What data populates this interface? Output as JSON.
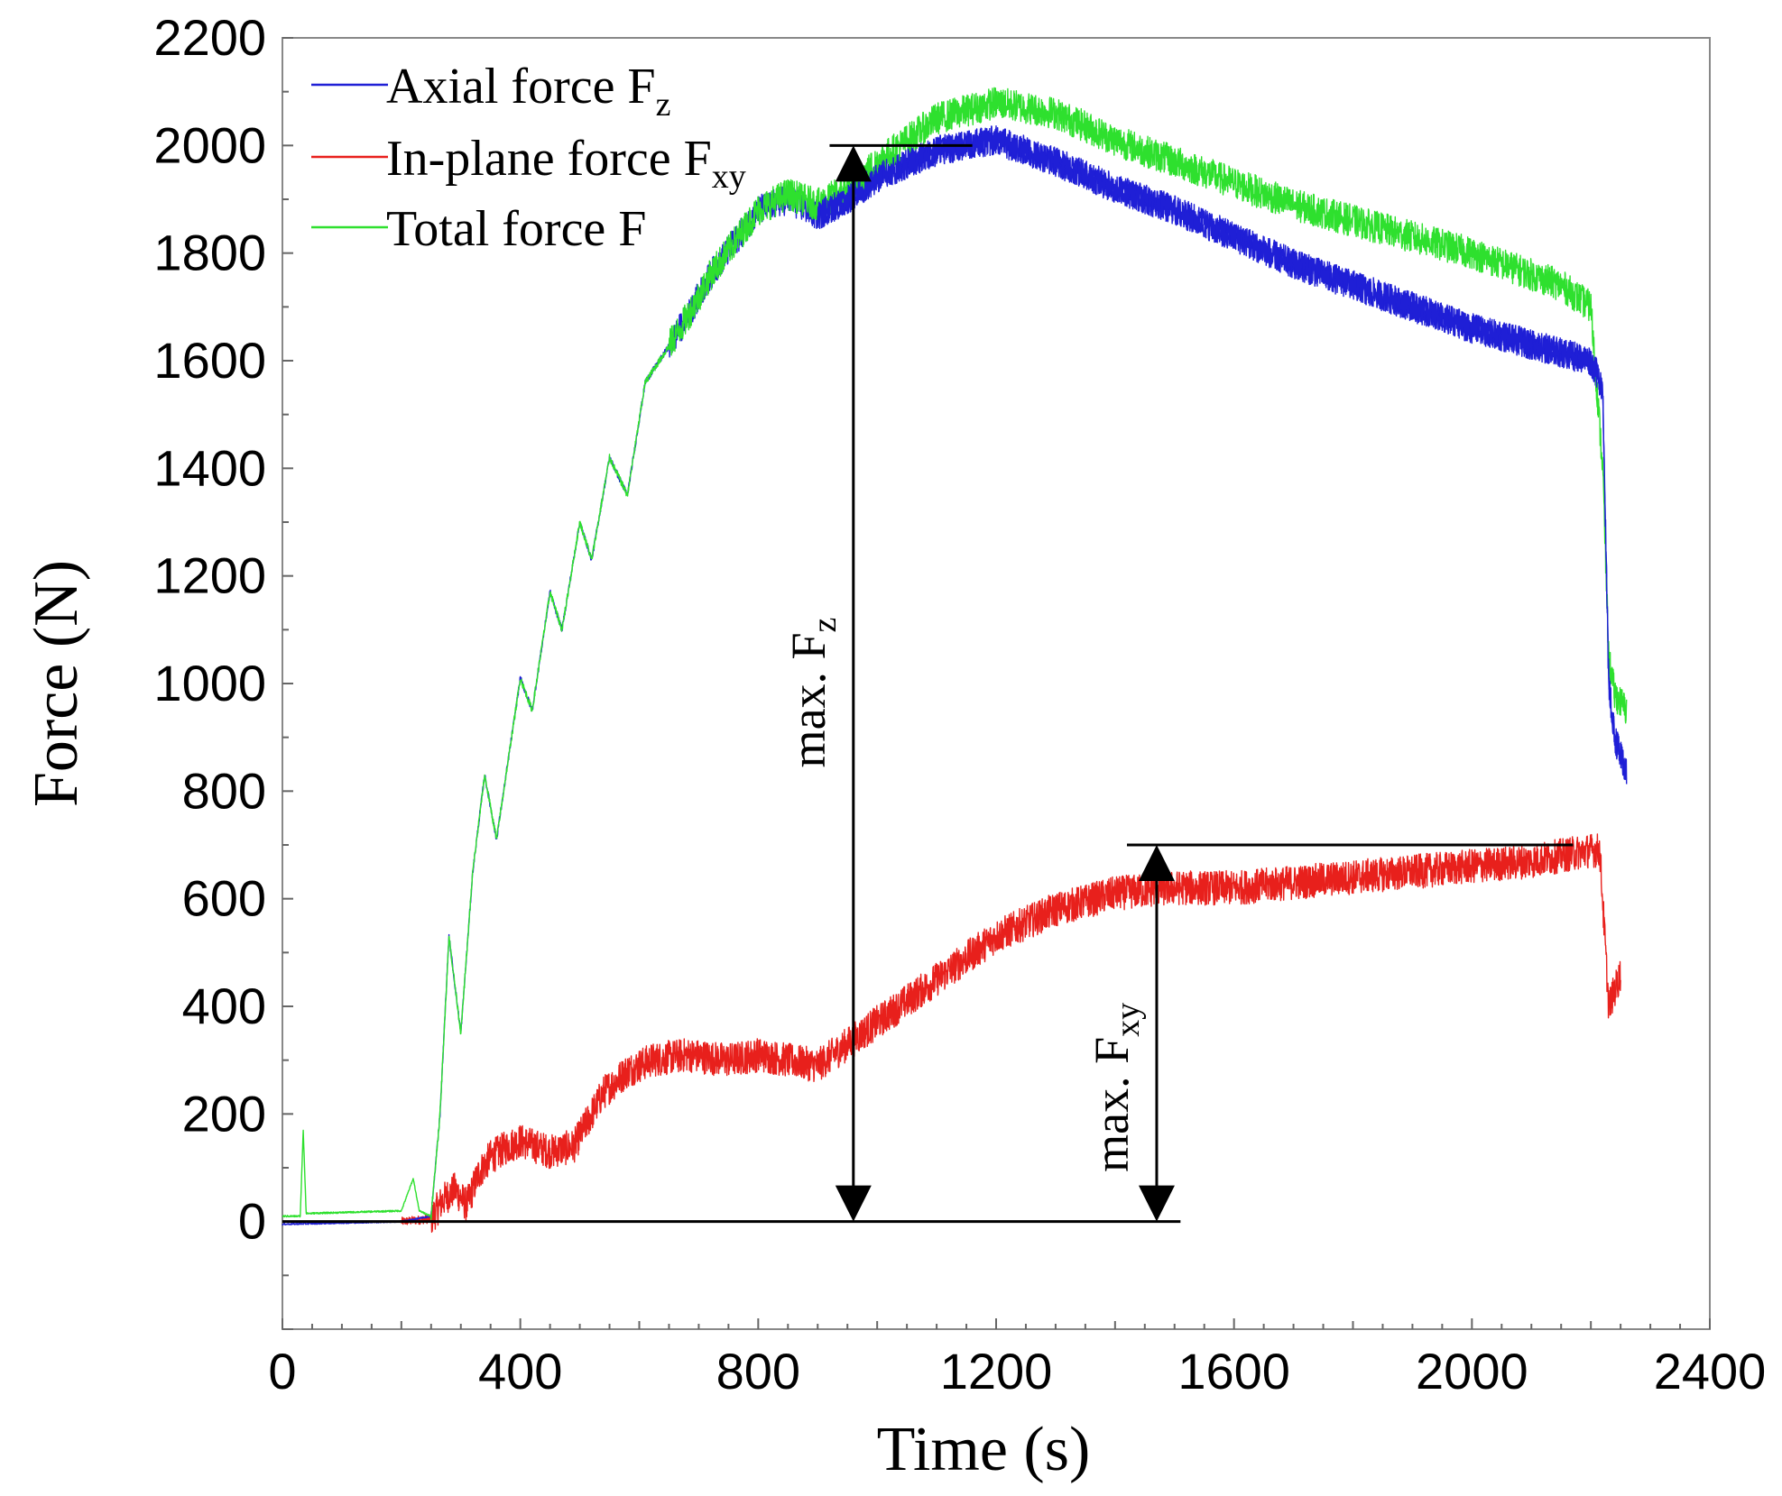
{
  "chart_data": {
    "type": "line",
    "title": "",
    "xlabel": "Time (s)",
    "ylabel": "Force (N)",
    "xlim": [
      0,
      2400
    ],
    "ylim": [
      -200,
      2200
    ],
    "xticks": [
      0,
      400,
      800,
      1200,
      1600,
      2000,
      2400
    ],
    "yticks": [
      0,
      200,
      400,
      600,
      800,
      1000,
      1200,
      1400,
      1600,
      1800,
      2000,
      2200
    ],
    "legend_position": "top-left",
    "series": [
      {
        "name": "Axial force F_z",
        "legend_main": "Axial force F",
        "legend_sub": "z",
        "color": "#1f1fd6",
        "noise": 28,
        "x": [
          0,
          200,
          250,
          265,
          280,
          300,
          320,
          340,
          360,
          400,
          420,
          450,
          470,
          500,
          520,
          550,
          580,
          610,
          640,
          680,
          720,
          760,
          800,
          850,
          900,
          950,
          1000,
          1100,
          1200,
          1300,
          1400,
          1500,
          1600,
          1700,
          1800,
          1900,
          2000,
          2100,
          2200,
          2220,
          2230,
          2240,
          2260
        ],
        "y": [
          -5,
          0,
          10,
          200,
          530,
          350,
          650,
          830,
          710,
          1010,
          950,
          1170,
          1100,
          1300,
          1230,
          1420,
          1350,
          1560,
          1610,
          1680,
          1760,
          1820,
          1880,
          1900,
          1870,
          1900,
          1940,
          1990,
          2010,
          1970,
          1920,
          1880,
          1830,
          1780,
          1740,
          1700,
          1660,
          1630,
          1600,
          1550,
          1000,
          900,
          830
        ]
      },
      {
        "name": "In-plane force F_xy",
        "legend_main": "In-plane force F",
        "legend_sub": "xy",
        "color": "#e8201c",
        "noise": 32,
        "x": [
          200,
          250,
          270,
          290,
          310,
          330,
          350,
          380,
          400,
          450,
          490,
          510,
          540,
          580,
          620,
          680,
          750,
          800,
          850,
          900,
          950,
          1000,
          1100,
          1200,
          1300,
          1400,
          1500,
          1600,
          1700,
          1800,
          1900,
          2000,
          2100,
          2150,
          2200,
          2215,
          2230,
          2250
        ],
        "y": [
          0,
          5,
          40,
          60,
          30,
          90,
          120,
          140,
          150,
          130,
          140,
          180,
          240,
          280,
          300,
          310,
          300,
          310,
          300,
          290,
          330,
          370,
          450,
          530,
          580,
          610,
          620,
          620,
          630,
          640,
          650,
          660,
          670,
          680,
          690,
          690,
          400,
          460
        ]
      },
      {
        "name": "Total force F",
        "legend_main": "Total force F",
        "legend_sub": "",
        "color": "#2ee02e",
        "noise": 30,
        "x": [
          0,
          30,
          35,
          40,
          200,
          220,
          230,
          250,
          265,
          280,
          300,
          320,
          340,
          360,
          400,
          420,
          450,
          470,
          500,
          520,
          550,
          580,
          610,
          640,
          680,
          720,
          760,
          800,
          850,
          900,
          950,
          1000,
          1100,
          1200,
          1300,
          1400,
          1500,
          1600,
          1700,
          1800,
          1900,
          2000,
          2100,
          2150,
          2200,
          2220,
          2230,
          2240,
          2260
        ],
        "y": [
          10,
          10,
          170,
          15,
          20,
          80,
          20,
          10,
          200,
          530,
          350,
          650,
          830,
          710,
          1010,
          950,
          1170,
          1100,
          1300,
          1230,
          1420,
          1350,
          1560,
          1610,
          1680,
          1760,
          1820,
          1880,
          1910,
          1890,
          1920,
          1970,
          2050,
          2080,
          2060,
          2010,
          1970,
          1930,
          1890,
          1860,
          1830,
          1800,
          1760,
          1740,
          1700,
          1400,
          1050,
          980,
          950
        ]
      }
    ],
    "annotations": [
      {
        "label_main": "max. F",
        "label_sub": "z",
        "from_y": 0,
        "to_y": 2000,
        "x": 960,
        "ref_line_x_start": 920,
        "ref_line_x_end": 1160
      },
      {
        "label_main": "max. F",
        "label_sub": "xy",
        "from_y": 0,
        "to_y": 700,
        "x": 1470,
        "ref_line_x_start": 1420,
        "ref_line_x_end": 2170
      }
    ],
    "baseline": {
      "y": 0,
      "x_start": 0,
      "x_end": 1510
    }
  }
}
